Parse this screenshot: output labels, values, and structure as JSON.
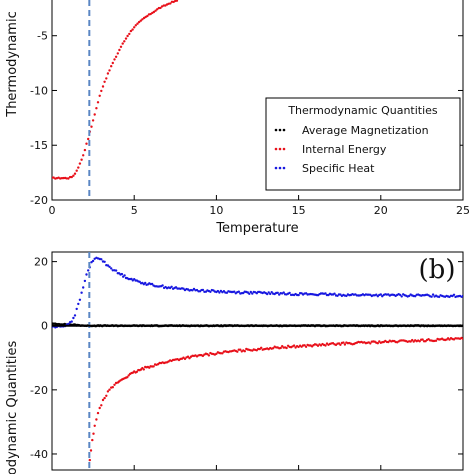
{
  "chart_data": [
    {
      "panel": "a",
      "type": "scatter",
      "xlabel": "Temperature",
      "ylabel": "Thermodynamic",
      "xlim": [
        0,
        25
      ],
      "ylim": [
        -20,
        1
      ],
      "xticks": [
        0,
        5,
        10,
        15,
        20,
        25
      ],
      "yticks": [
        -20,
        -15,
        -10,
        -5
      ],
      "vline_x": 2.27,
      "legend": {
        "title": "Thermodynamic Quantities",
        "placement": "lower-right",
        "entries": [
          {
            "label": "Average Magnetization",
            "color": "#000000"
          },
          {
            "label": "Internal Energy",
            "color": "#e8101a"
          },
          {
            "label": "Specific Heat",
            "color": "#1818e0"
          }
        ]
      },
      "series": [
        {
          "name": "Internal Energy",
          "color": "#e8101a",
          "x": [
            0.0,
            0.2,
            0.4,
            0.6,
            0.8,
            1.0,
            1.2,
            1.4,
            1.5,
            1.6,
            1.7,
            1.8,
            1.9,
            2.0,
            2.1,
            2.2,
            2.3,
            2.4,
            2.5,
            2.6,
            2.7,
            2.8,
            2.9,
            3.0,
            3.2,
            3.4,
            3.6,
            3.8,
            4.0,
            4.2,
            4.4,
            4.6,
            4.8,
            5.0,
            5.3,
            5.6,
            5.9,
            6.2,
            6.5,
            6.8,
            7.2,
            7.6
          ],
          "y": [
            -18.0,
            -18.0,
            -18.0,
            -18.0,
            -18.0,
            -18.0,
            -17.9,
            -17.6,
            -17.3,
            -17.0,
            -16.7,
            -16.3,
            -15.9,
            -15.4,
            -14.9,
            -14.4,
            -13.8,
            -13.3,
            -12.7,
            -12.2,
            -11.6,
            -11.1,
            -10.5,
            -10.0,
            -9.2,
            -8.5,
            -7.8,
            -7.2,
            -6.6,
            -6.0,
            -5.5,
            -5.0,
            -4.6,
            -4.2,
            -3.8,
            -3.4,
            -3.1,
            -2.8,
            -2.5,
            -2.3,
            -2.0,
            -1.8
          ]
        }
      ]
    },
    {
      "panel": "b",
      "type": "scatter",
      "label": "(b)",
      "ylabel": "odynamic Quantities",
      "xlim": [
        0,
        25
      ],
      "ylim": [
        -45,
        23
      ],
      "yticks": [
        -40,
        -20,
        0,
        20
      ],
      "vline_x": 2.27,
      "series": [
        {
          "name": "Average Magnetization",
          "color": "#000000",
          "x": [
            0.0,
            0.3,
            0.6,
            0.9,
            1.2,
            1.5,
            1.8,
            2.1,
            2.4,
            2.7,
            3.0,
            3.5,
            4.0,
            4.5,
            5.0,
            6.0,
            7.0,
            8.0,
            9.0,
            10.0,
            11.0,
            12.0,
            13.0,
            14.0,
            15.0,
            16.0,
            17.0,
            18.0,
            19.0,
            20.0,
            21.0,
            22.0,
            23.0,
            24.0,
            25.0
          ],
          "y": [
            0.6,
            0.5,
            0.5,
            0.4,
            0.3,
            0.2,
            0.1,
            0.0,
            0.0,
            0.0,
            0.0,
            0.0,
            0.0,
            0.0,
            0.0,
            0.0,
            0.0,
            0.0,
            0.0,
            0.0,
            0.0,
            0.0,
            0.0,
            0.0,
            0.0,
            0.0,
            0.0,
            0.0,
            0.0,
            0.0,
            0.0,
            0.0,
            0.0,
            0.0,
            0.0
          ]
        },
        {
          "name": "Specific Heat",
          "color": "#1818e0",
          "x": [
            0.0,
            0.3,
            0.6,
            0.9,
            1.2,
            1.4,
            1.6,
            1.8,
            2.0,
            2.2,
            2.4,
            2.6,
            2.8,
            3.0,
            3.3,
            3.6,
            4.0,
            4.5,
            5.0,
            5.5,
            6.0,
            7.0,
            8.0,
            9.0,
            10.0,
            11.0,
            12.0,
            13.0,
            14.0,
            15.0,
            16.0,
            17.0,
            18.0,
            19.0,
            20.0,
            21.0,
            22.0,
            23.0,
            24.0,
            25.0
          ],
          "y": [
            -0.3,
            -0.4,
            -0.2,
            0.3,
            1.5,
            3.5,
            6.5,
            10.0,
            14.0,
            17.5,
            19.5,
            20.8,
            21.2,
            20.6,
            19.2,
            18.0,
            16.5,
            15.2,
            14.2,
            13.4,
            12.8,
            12.0,
            11.4,
            11.0,
            10.7,
            10.5,
            10.3,
            10.2,
            10.0,
            9.9,
            9.8,
            9.7,
            9.6,
            9.6,
            9.5,
            9.5,
            9.4,
            9.4,
            9.3,
            9.3
          ]
        },
        {
          "name": "Internal Energy",
          "color": "#e8101a",
          "x": [
            2.3,
            2.45,
            2.6,
            2.8,
            3.0,
            3.3,
            3.6,
            4.0,
            4.5,
            5.0,
            5.5,
            6.0,
            7.0,
            8.0,
            9.0,
            10.0,
            11.0,
            12.0,
            13.0,
            14.0,
            15.0,
            16.0,
            17.0,
            18.0,
            19.0,
            20.0,
            21.0,
            22.0,
            23.0,
            24.0,
            25.0
          ],
          "y": [
            -42.0,
            -36.0,
            -31.0,
            -27.5,
            -24.5,
            -21.5,
            -19.5,
            -17.6,
            -16.0,
            -14.6,
            -13.5,
            -12.6,
            -11.2,
            -10.1,
            -9.3,
            -8.6,
            -8.0,
            -7.5,
            -7.1,
            -6.7,
            -6.4,
            -6.1,
            -5.8,
            -5.5,
            -5.3,
            -5.1,
            -4.9,
            -4.7,
            -4.5,
            -4.3,
            -4.1
          ]
        }
      ]
    }
  ]
}
